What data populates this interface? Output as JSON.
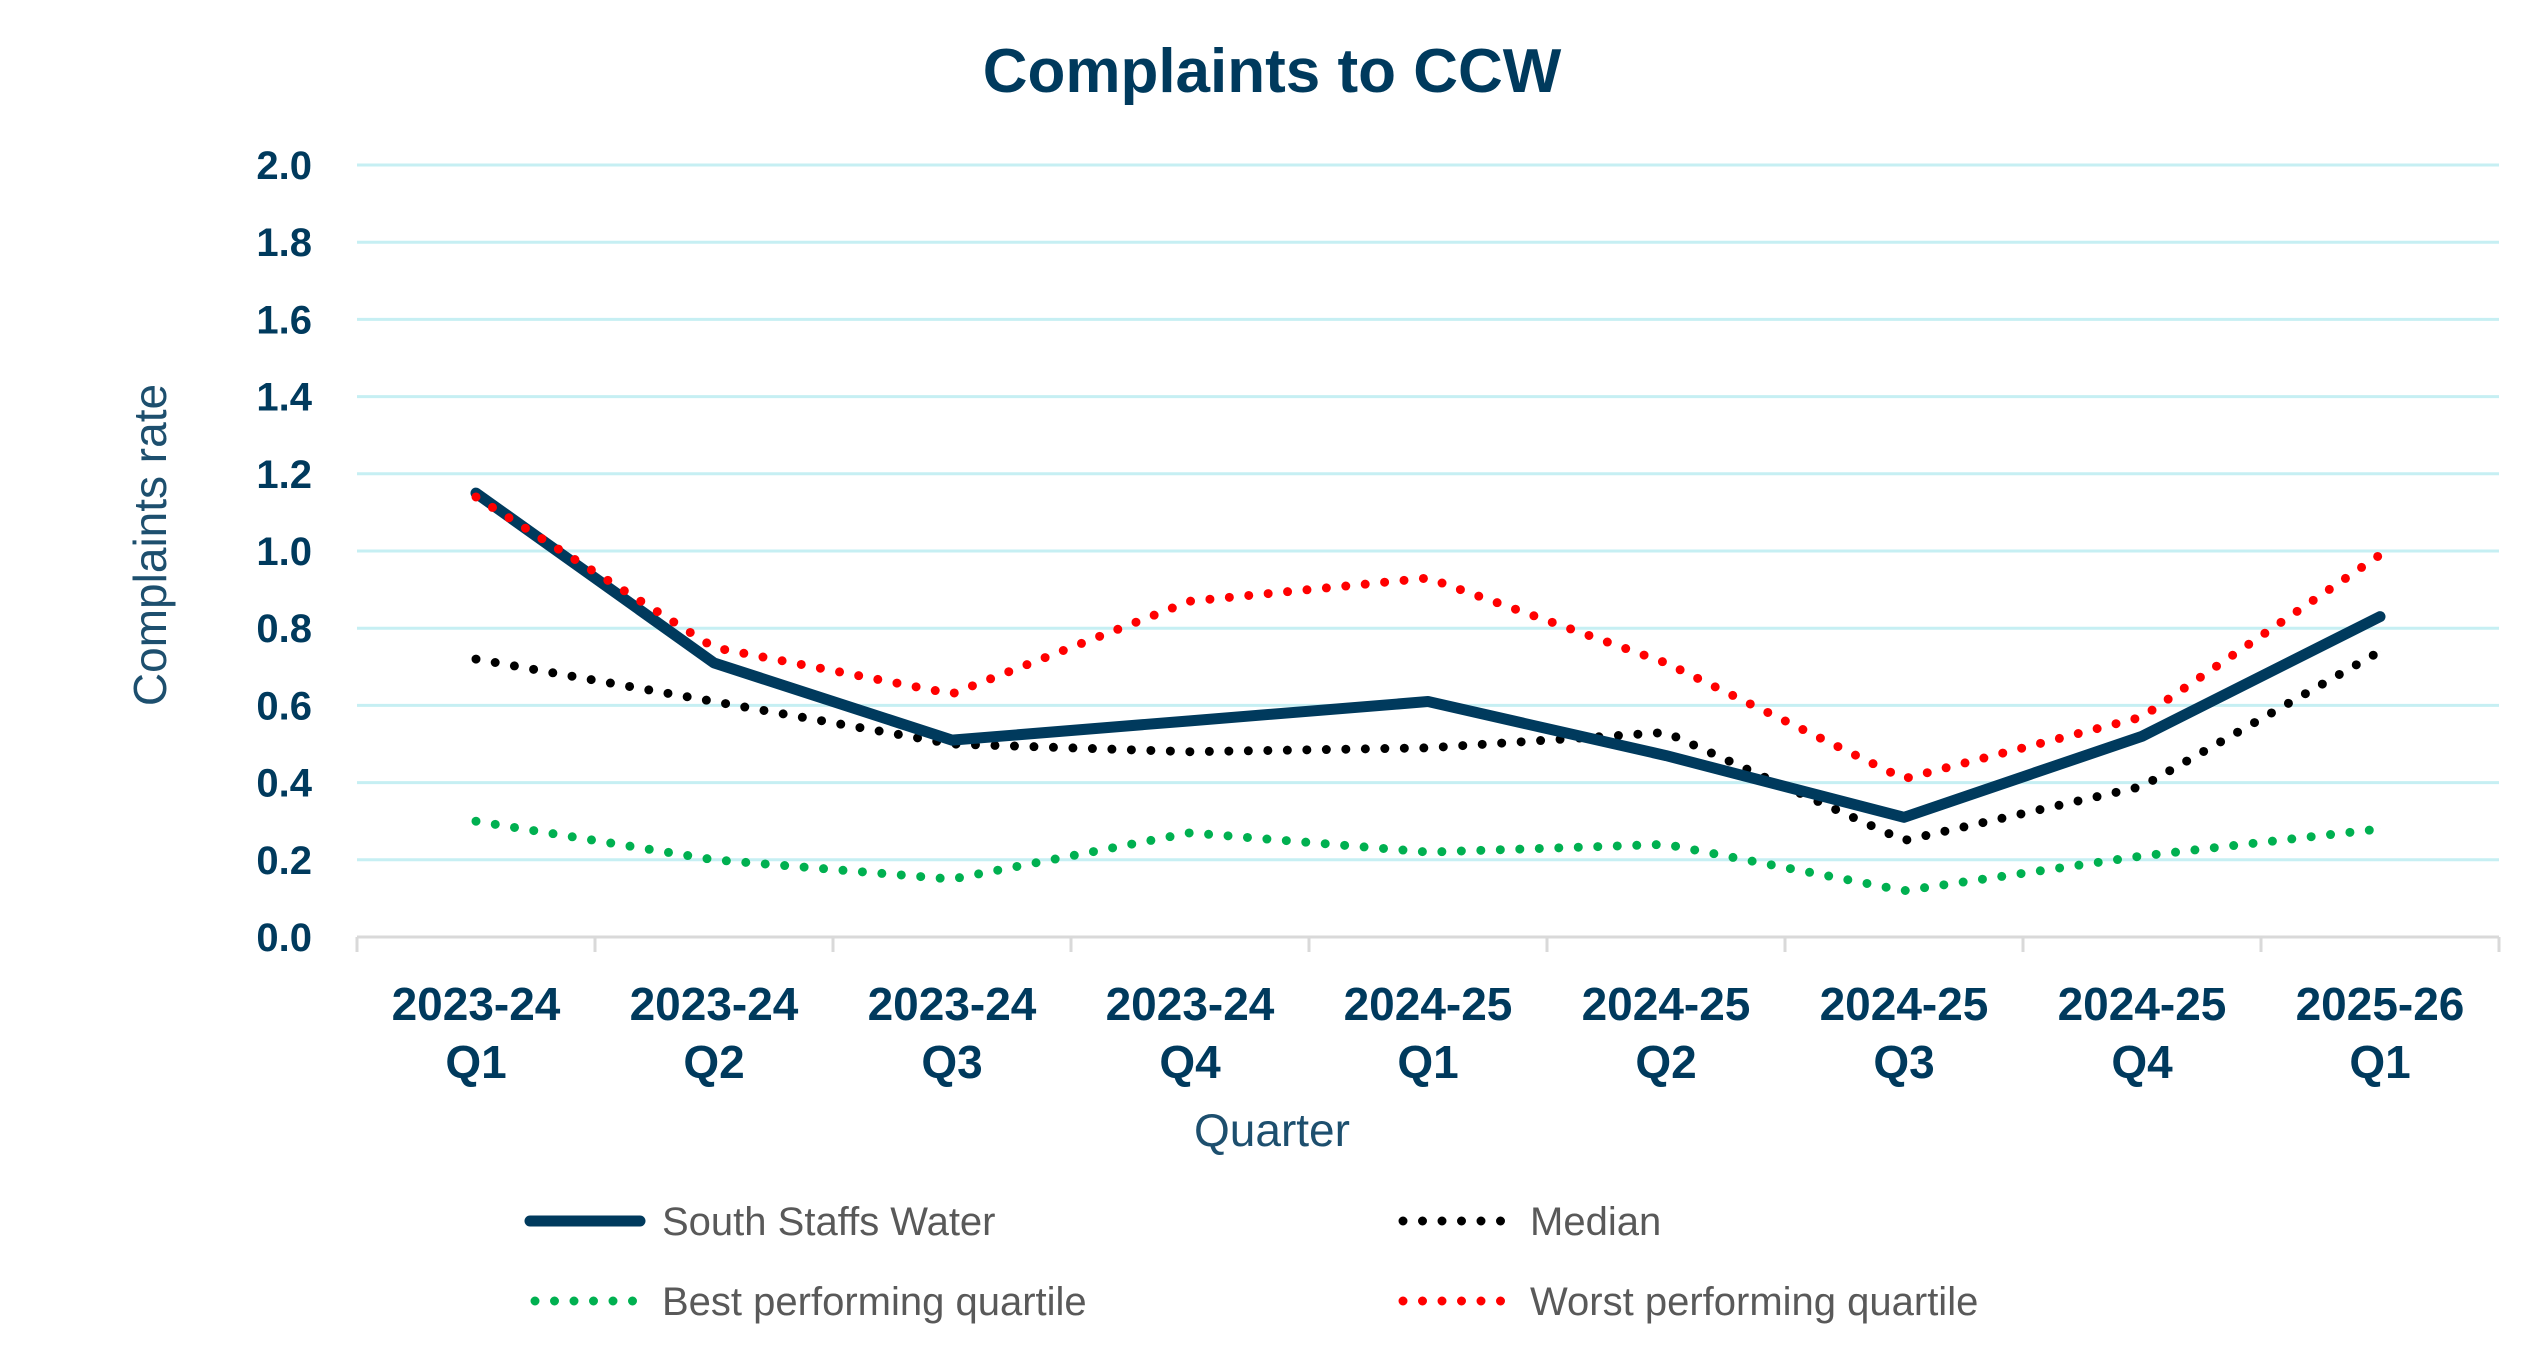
{
  "chart_data": {
    "type": "line",
    "title": "Complaints to CCW",
    "xlabel": "Quarter",
    "ylabel": "Complaints rate",
    "ylim": [
      0,
      2.0
    ],
    "yticks": [
      "0.0",
      "0.2",
      "0.4",
      "0.6",
      "0.8",
      "1.0",
      "1.2",
      "1.4",
      "1.6",
      "1.8",
      "2.0"
    ],
    "grid": true,
    "legend_position": "bottom",
    "categories": [
      {
        "line1": "2023-24",
        "line2": "Q1"
      },
      {
        "line1": "2023-24",
        "line2": "Q2"
      },
      {
        "line1": "2023-24",
        "line2": "Q3"
      },
      {
        "line1": "2023-24",
        "line2": "Q4"
      },
      {
        "line1": "2024-25",
        "line2": "Q1"
      },
      {
        "line1": "2024-25",
        "line2": "Q2"
      },
      {
        "line1": "2024-25",
        "line2": "Q3"
      },
      {
        "line1": "2024-25",
        "line2": "Q4"
      },
      {
        "line1": "2025-26",
        "line2": "Q1"
      }
    ],
    "series": [
      {
        "name": "South Staffs Water",
        "style": "solid",
        "color": "#003a5d",
        "values": [
          1.15,
          0.71,
          0.51,
          0.56,
          0.61,
          0.47,
          0.31,
          0.52,
          0.83
        ]
      },
      {
        "name": "Median",
        "style": "dotted",
        "color": "#000000",
        "values": [
          0.72,
          0.61,
          0.5,
          0.48,
          0.49,
          0.53,
          0.25,
          0.39,
          0.74
        ]
      },
      {
        "name": "Best performing quartile",
        "style": "dotted",
        "color": "#00b050",
        "values": [
          0.3,
          0.2,
          0.15,
          0.27,
          0.22,
          0.24,
          0.12,
          0.21,
          0.28
        ]
      },
      {
        "name": "Worst performing quartile",
        "style": "dotted",
        "color": "#ff0000",
        "values": [
          1.14,
          0.75,
          0.63,
          0.87,
          0.93,
          0.71,
          0.41,
          0.57,
          0.99
        ]
      }
    ]
  },
  "colors": {
    "text_primary": "#003a5d",
    "gridline": "#c6eff3",
    "axis": "#d9d9d9",
    "legend_text": "#595959"
  }
}
